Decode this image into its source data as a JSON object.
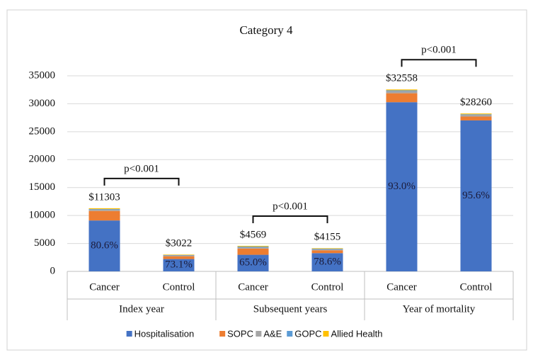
{
  "chart_data": {
    "type": "stacked_bar",
    "title": "Category 4",
    "groups": [
      "Index year",
      "Subsequent years",
      "Year of mortality"
    ],
    "categories": [
      "Cancer",
      "Control",
      "Cancer",
      "Control",
      "Cancer",
      "Control"
    ],
    "series": [
      {
        "name": "Hospitalisation",
        "color": "#4472c4",
        "values": [
          9110,
          2209,
          2970,
          3266,
          30279,
          27017
        ]
      },
      {
        "name": "SOPC",
        "color": "#ed7d31",
        "values": [
          1700,
          500,
          1100,
          500,
          1600,
          700
        ]
      },
      {
        "name": "A&E",
        "color": "#a5a5a5",
        "values": [
          250,
          150,
          250,
          200,
          400,
          300
        ]
      },
      {
        "name": "GOPC",
        "color": "#5b9bd5",
        "values": [
          100,
          80,
          130,
          100,
          130,
          100
        ]
      },
      {
        "name": "Allied Health",
        "color": "#ffc000",
        "values": [
          143,
          83,
          119,
          89,
          149,
          143
        ]
      }
    ],
    "total_labels": [
      "$11303",
      "$3022",
      "$4569",
      "$4155",
      "$32558",
      "$28260"
    ],
    "share_labels": [
      "80.6%",
      "73.1%",
      "65.0%",
      "78.6%",
      "93.0%",
      "95.6%"
    ],
    "pvalue_labels": [
      "p<0.001",
      "p<0.001",
      "p<0.001"
    ],
    "ylim": [
      0,
      35000
    ],
    "yticks": [
      0,
      5000,
      10000,
      15000,
      20000,
      25000,
      30000,
      35000
    ],
    "grid": true,
    "legend": "bottom"
  }
}
